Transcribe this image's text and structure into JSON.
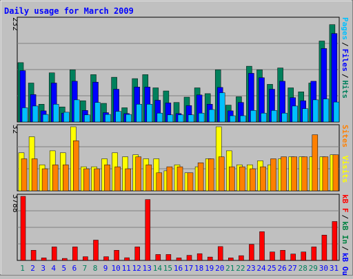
{
  "title": "Daily usage for March 2009",
  "colors": {
    "background": "#c0c0c0",
    "title": "#0000ff",
    "hits": "#00805c",
    "files": "#0000ff",
    "pages": "#00c0ff",
    "visits": "#ffff00",
    "sites": "#ff8000",
    "kb_in": "#008040",
    "kb_out": "#0000ff",
    "kb_f": "#ff0000",
    "weekend_label": "#00805c",
    "weekday_label": "#0000ff"
  },
  "chart_data": [
    {
      "type": "bar",
      "panel": "hits-files-pages",
      "scale_label": "232",
      "ylim": [
        0,
        232
      ],
      "legend": [
        "Pages",
        "/",
        "Files",
        "/",
        "Hits"
      ],
      "categories": [
        "1",
        "2",
        "3",
        "4",
        "5",
        "6",
        "7",
        "8",
        "9",
        "10",
        "11",
        "12",
        "13",
        "14",
        "15",
        "16",
        "17",
        "18",
        "19",
        "20",
        "21",
        "22",
        "23",
        "24",
        "25",
        "26",
        "27",
        "28",
        "29",
        "30",
        "31"
      ],
      "series": [
        {
          "name": "Hits",
          "values": [
            134,
            88,
            40,
            111,
            34,
            118,
            48,
            107,
            42,
            101,
            32,
            98,
            107,
            77,
            70,
            44,
            56,
            77,
            64,
            118,
            38,
            57,
            126,
            118,
            85,
            122,
            77,
            68,
            88,
            183,
            220
          ]
        },
        {
          "name": "Files",
          "values": [
            116,
            62,
            25,
            88,
            20,
            92,
            26,
            90,
            21,
            74,
            19,
            79,
            79,
            49,
            43,
            19,
            37,
            61,
            40,
            78,
            25,
            44,
            110,
            100,
            74,
            92,
            55,
            48,
            92,
            166,
            200
          ]
        },
        {
          "name": "Pages",
          "values": [
            32,
            36,
            17,
            40,
            22,
            50,
            16,
            44,
            17,
            24,
            17,
            40,
            40,
            20,
            16,
            16,
            16,
            20,
            28,
            66,
            14,
            14,
            26,
            20,
            26,
            20,
            36,
            30,
            50,
            52,
            45
          ]
        }
      ]
    },
    {
      "type": "bar",
      "panel": "visits-sites",
      "scale_label": "32",
      "ylim": [
        0,
        32
      ],
      "legend": [
        "Visits",
        "Sites"
      ],
      "categories": [
        "1",
        "2",
        "3",
        "4",
        "5",
        "6",
        "7",
        "8",
        "9",
        "10",
        "11",
        "12",
        "13",
        "14",
        "15",
        "16",
        "17",
        "18",
        "19",
        "20",
        "21",
        "22",
        "23",
        "24",
        "25",
        "26",
        "27",
        "28",
        "29",
        "30",
        "31"
      ],
      "series": [
        {
          "name": "Visits",
          "values": [
            19,
            27,
            13,
            20,
            19,
            32,
            12,
            12,
            16,
            19,
            17,
            18,
            16,
            16,
            10,
            13,
            9,
            12,
            16,
            32,
            20,
            13,
            13,
            15,
            13,
            16,
            17,
            17,
            17,
            17,
            18
          ]
        },
        {
          "name": "Sites",
          "values": [
            16,
            16,
            11,
            13,
            13,
            25,
            11,
            11,
            13,
            12,
            11,
            17,
            13,
            9,
            12,
            12,
            9,
            14,
            16,
            17,
            12,
            12,
            11,
            12,
            16,
            17,
            17,
            17,
            28,
            17,
            18
          ]
        }
      ]
    },
    {
      "type": "bar",
      "panel": "kb",
      "scale_label": "3788",
      "ylim": [
        0,
        3788
      ],
      "legend": [
        "kB F",
        "/",
        "kB In",
        "/",
        "kB Out"
      ],
      "categories": [
        "1",
        "2",
        "3",
        "4",
        "5",
        "6",
        "7",
        "8",
        "9",
        "10",
        "11",
        "12",
        "13",
        "14",
        "15",
        "16",
        "17",
        "18",
        "19",
        "20",
        "21",
        "22",
        "23",
        "24",
        "25",
        "26",
        "27",
        "28",
        "29",
        "30",
        "31"
      ],
      "series": [
        {
          "name": "kB F",
          "values": [
            3788,
            600,
            150,
            800,
            120,
            800,
            220,
            1200,
            220,
            600,
            160,
            800,
            3600,
            350,
            350,
            150,
            300,
            400,
            200,
            820,
            150,
            280,
            950,
            1700,
            500,
            600,
            380,
            500,
            800,
            1500,
            2300
          ]
        }
      ]
    }
  ]
}
